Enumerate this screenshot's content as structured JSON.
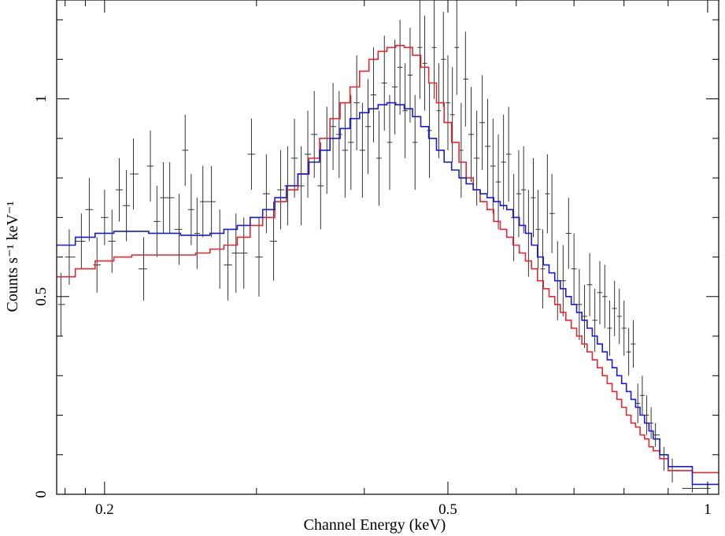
{
  "chart_data": {
    "type": "line",
    "xlabel": "Channel Energy (keV)",
    "ylabel": "Counts s⁻¹ keV⁻¹",
    "xscale": "log",
    "xlim": [
      0.176,
      1.03
    ],
    "ylim": [
      0,
      1.25
    ],
    "xticks": [
      {
        "value": 0.2,
        "label": "0.2"
      },
      {
        "value": 0.5,
        "label": "0.5"
      },
      {
        "value": 1,
        "label": "1"
      }
    ],
    "yticks": [
      {
        "value": 0,
        "label": "0"
      },
      {
        "value": 0.5,
        "label": "0.5"
      },
      {
        "value": 1,
        "label": "1"
      }
    ],
    "grid": false,
    "colors": {
      "data": "#333333",
      "model_red": "#e8262e",
      "model_blue": "#1a1adc"
    },
    "data_points": [
      [
        0.178,
        0.48,
        0.08
      ],
      [
        0.182,
        0.6,
        0.07
      ],
      [
        0.188,
        0.64,
        0.07
      ],
      [
        0.192,
        0.72,
        0.08
      ],
      [
        0.196,
        0.58,
        0.07
      ],
      [
        0.2,
        0.7,
        0.07
      ],
      [
        0.204,
        0.64,
        0.08
      ],
      [
        0.208,
        0.77,
        0.08
      ],
      [
        0.212,
        0.73,
        0.09
      ],
      [
        0.216,
        0.81,
        0.09
      ],
      [
        0.222,
        0.57,
        0.08
      ],
      [
        0.226,
        0.83,
        0.09
      ],
      [
        0.23,
        0.69,
        0.09
      ],
      [
        0.234,
        0.75,
        0.09
      ],
      [
        0.238,
        0.75,
        0.09
      ],
      [
        0.244,
        0.67,
        0.09
      ],
      [
        0.248,
        0.87,
        0.09
      ],
      [
        0.252,
        0.72,
        0.09
      ],
      [
        0.256,
        0.66,
        0.09
      ],
      [
        0.26,
        0.74,
        0.09
      ],
      [
        0.266,
        0.74,
        0.09
      ],
      [
        0.272,
        0.62,
        0.1
      ],
      [
        0.278,
        0.58,
        0.09
      ],
      [
        0.284,
        0.61,
        0.1
      ],
      [
        0.29,
        0.61,
        0.09
      ],
      [
        0.296,
        0.86,
        0.09
      ],
      [
        0.302,
        0.6,
        0.1
      ],
      [
        0.308,
        0.76,
        0.1
      ],
      [
        0.314,
        0.64,
        0.1
      ],
      [
        0.32,
        0.77,
        0.1
      ],
      [
        0.326,
        0.78,
        0.1
      ],
      [
        0.332,
        0.85,
        0.1
      ],
      [
        0.338,
        0.78,
        0.1
      ],
      [
        0.344,
        0.86,
        0.11
      ],
      [
        0.35,
        0.91,
        0.11
      ],
      [
        0.356,
        0.78,
        0.11
      ],
      [
        0.362,
        0.87,
        0.11
      ],
      [
        0.368,
        0.93,
        0.11
      ],
      [
        0.374,
        0.91,
        0.11
      ],
      [
        0.38,
        0.87,
        0.12
      ],
      [
        0.386,
        0.89,
        0.12
      ],
      [
        0.392,
        0.99,
        0.12
      ],
      [
        0.398,
        0.87,
        0.12
      ],
      [
        0.404,
        0.93,
        0.12
      ],
      [
        0.41,
        1.01,
        0.12
      ],
      [
        0.416,
        0.85,
        0.12
      ],
      [
        0.422,
        1.04,
        0.12
      ],
      [
        0.428,
        0.89,
        0.12
      ],
      [
        0.434,
        1.03,
        0.12
      ],
      [
        0.44,
        1.08,
        0.12
      ],
      [
        0.446,
        0.97,
        0.12
      ],
      [
        0.452,
        1.06,
        0.12
      ],
      [
        0.458,
        0.89,
        0.12
      ],
      [
        0.464,
        1.13,
        0.13
      ],
      [
        0.47,
        1.09,
        0.12
      ],
      [
        0.476,
        0.92,
        0.12
      ],
      [
        0.482,
        1.13,
        0.13
      ],
      [
        0.488,
        0.97,
        0.12
      ],
      [
        0.494,
        1.1,
        0.12
      ],
      [
        0.5,
        0.99,
        0.12
      ],
      [
        0.506,
        0.96,
        0.12
      ],
      [
        0.512,
        1.13,
        0.12
      ],
      [
        0.518,
        0.87,
        0.12
      ],
      [
        0.524,
        1.05,
        0.12
      ],
      [
        0.532,
        0.91,
        0.12
      ],
      [
        0.54,
        0.85,
        0.12
      ],
      [
        0.548,
        0.94,
        0.12
      ],
      [
        0.556,
        0.88,
        0.12
      ],
      [
        0.564,
        0.83,
        0.12
      ],
      [
        0.572,
        0.79,
        0.12
      ],
      [
        0.58,
        0.84,
        0.12
      ],
      [
        0.588,
        0.86,
        0.12
      ],
      [
        0.596,
        0.7,
        0.11
      ],
      [
        0.604,
        0.76,
        0.11
      ],
      [
        0.612,
        0.77,
        0.11
      ],
      [
        0.62,
        0.66,
        0.11
      ],
      [
        0.628,
        0.75,
        0.1
      ],
      [
        0.636,
        0.67,
        0.1
      ],
      [
        0.644,
        0.57,
        0.1
      ],
      [
        0.652,
        0.76,
        0.1
      ],
      [
        0.66,
        0.71,
        0.1
      ],
      [
        0.67,
        0.54,
        0.1
      ],
      [
        0.68,
        0.54,
        0.09
      ],
      [
        0.69,
        0.66,
        0.09
      ],
      [
        0.7,
        0.57,
        0.09
      ],
      [
        0.71,
        0.48,
        0.09
      ],
      [
        0.72,
        0.45,
        0.08
      ],
      [
        0.73,
        0.53,
        0.08
      ],
      [
        0.74,
        0.44,
        0.08
      ],
      [
        0.75,
        0.51,
        0.08
      ],
      [
        0.76,
        0.5,
        0.08
      ],
      [
        0.77,
        0.42,
        0.07
      ],
      [
        0.78,
        0.47,
        0.07
      ],
      [
        0.79,
        0.45,
        0.07
      ],
      [
        0.8,
        0.42,
        0.07
      ],
      [
        0.81,
        0.36,
        0.06
      ],
      [
        0.82,
        0.38,
        0.06
      ],
      [
        0.83,
        0.23,
        0.05
      ],
      [
        0.84,
        0.25,
        0.05
      ],
      [
        0.85,
        0.2,
        0.05
      ],
      [
        0.86,
        0.18,
        0.04
      ],
      [
        0.87,
        0.15,
        0.03
      ],
      [
        0.89,
        0.09,
        0.03
      ],
      [
        0.91,
        0.06,
        0.03
      ],
      [
        0.96,
        0.015,
        0.01
      ],
      [
        1.0,
        0.015,
        0.01
      ]
    ],
    "series": [
      {
        "color": "red",
        "points": [
          [
            0.176,
            0.55
          ],
          [
            0.185,
            0.57
          ],
          [
            0.195,
            0.59
          ],
          [
            0.205,
            0.6
          ],
          [
            0.215,
            0.605
          ],
          [
            0.225,
            0.605
          ],
          [
            0.235,
            0.605
          ],
          [
            0.245,
            0.605
          ],
          [
            0.255,
            0.61
          ],
          [
            0.265,
            0.62
          ],
          [
            0.275,
            0.63
          ],
          [
            0.285,
            0.65
          ],
          [
            0.295,
            0.68
          ],
          [
            0.305,
            0.7
          ],
          [
            0.315,
            0.74
          ],
          [
            0.325,
            0.77
          ],
          [
            0.335,
            0.81
          ],
          [
            0.345,
            0.85
          ],
          [
            0.355,
            0.9
          ],
          [
            0.365,
            0.95
          ],
          [
            0.375,
            0.99
          ],
          [
            0.385,
            1.03
          ],
          [
            0.395,
            1.07
          ],
          [
            0.405,
            1.1
          ],
          [
            0.415,
            1.12
          ],
          [
            0.425,
            1.13
          ],
          [
            0.435,
            1.135
          ],
          [
            0.445,
            1.13
          ],
          [
            0.455,
            1.11
          ],
          [
            0.465,
            1.08
          ],
          [
            0.475,
            1.04
          ],
          [
            0.485,
            0.99
          ],
          [
            0.495,
            0.94
          ],
          [
            0.505,
            0.89
          ],
          [
            0.515,
            0.84
          ],
          [
            0.525,
            0.8
          ],
          [
            0.535,
            0.77
          ],
          [
            0.545,
            0.74
          ],
          [
            0.555,
            0.72
          ],
          [
            0.565,
            0.69
          ],
          [
            0.575,
            0.67
          ],
          [
            0.585,
            0.65
          ],
          [
            0.595,
            0.63
          ],
          [
            0.605,
            0.61
          ],
          [
            0.615,
            0.59
          ],
          [
            0.625,
            0.57
          ],
          [
            0.635,
            0.54
          ],
          [
            0.645,
            0.52
          ],
          [
            0.655,
            0.5
          ],
          [
            0.665,
            0.48
          ],
          [
            0.675,
            0.46
          ],
          [
            0.685,
            0.44
          ],
          [
            0.695,
            0.42
          ],
          [
            0.705,
            0.4
          ],
          [
            0.715,
            0.38
          ],
          [
            0.725,
            0.36
          ],
          [
            0.735,
            0.34
          ],
          [
            0.745,
            0.32
          ],
          [
            0.755,
            0.3
          ],
          [
            0.765,
            0.28
          ],
          [
            0.775,
            0.26
          ],
          [
            0.785,
            0.24
          ],
          [
            0.795,
            0.22
          ],
          [
            0.805,
            0.2
          ],
          [
            0.815,
            0.18
          ],
          [
            0.825,
            0.17
          ],
          [
            0.835,
            0.15
          ],
          [
            0.845,
            0.14
          ],
          [
            0.855,
            0.12
          ],
          [
            0.865,
            0.11
          ],
          [
            0.88,
            0.09
          ],
          [
            0.9,
            0.06
          ],
          [
            0.96,
            0.055
          ],
          [
            1.03,
            0.055
          ]
        ]
      },
      {
        "color": "blue",
        "points": [
          [
            0.176,
            0.63
          ],
          [
            0.185,
            0.65
          ],
          [
            0.195,
            0.66
          ],
          [
            0.205,
            0.665
          ],
          [
            0.215,
            0.665
          ],
          [
            0.225,
            0.66
          ],
          [
            0.235,
            0.66
          ],
          [
            0.245,
            0.655
          ],
          [
            0.255,
            0.655
          ],
          [
            0.265,
            0.66
          ],
          [
            0.275,
            0.67
          ],
          [
            0.285,
            0.68
          ],
          [
            0.295,
            0.7
          ],
          [
            0.305,
            0.72
          ],
          [
            0.315,
            0.75
          ],
          [
            0.325,
            0.78
          ],
          [
            0.335,
            0.81
          ],
          [
            0.345,
            0.84
          ],
          [
            0.355,
            0.87
          ],
          [
            0.365,
            0.9
          ],
          [
            0.375,
            0.925
          ],
          [
            0.385,
            0.95
          ],
          [
            0.395,
            0.965
          ],
          [
            0.405,
            0.975
          ],
          [
            0.415,
            0.985
          ],
          [
            0.425,
            0.99
          ],
          [
            0.435,
            0.985
          ],
          [
            0.445,
            0.975
          ],
          [
            0.455,
            0.955
          ],
          [
            0.465,
            0.93
          ],
          [
            0.475,
            0.9
          ],
          [
            0.485,
            0.87
          ],
          [
            0.495,
            0.84
          ],
          [
            0.505,
            0.82
          ],
          [
            0.515,
            0.8
          ],
          [
            0.525,
            0.785
          ],
          [
            0.535,
            0.77
          ],
          [
            0.545,
            0.76
          ],
          [
            0.555,
            0.75
          ],
          [
            0.565,
            0.74
          ],
          [
            0.575,
            0.73
          ],
          [
            0.585,
            0.72
          ],
          [
            0.595,
            0.7
          ],
          [
            0.605,
            0.68
          ],
          [
            0.615,
            0.66
          ],
          [
            0.625,
            0.63
          ],
          [
            0.635,
            0.6
          ],
          [
            0.645,
            0.58
          ],
          [
            0.655,
            0.56
          ],
          [
            0.665,
            0.54
          ],
          [
            0.675,
            0.52
          ],
          [
            0.685,
            0.5
          ],
          [
            0.695,
            0.48
          ],
          [
            0.705,
            0.46
          ],
          [
            0.715,
            0.44
          ],
          [
            0.725,
            0.42
          ],
          [
            0.735,
            0.4
          ],
          [
            0.745,
            0.38
          ],
          [
            0.755,
            0.36
          ],
          [
            0.765,
            0.34
          ],
          [
            0.775,
            0.32
          ],
          [
            0.785,
            0.3
          ],
          [
            0.795,
            0.28
          ],
          [
            0.805,
            0.26
          ],
          [
            0.815,
            0.24
          ],
          [
            0.825,
            0.22
          ],
          [
            0.835,
            0.2
          ],
          [
            0.845,
            0.18
          ],
          [
            0.855,
            0.16
          ],
          [
            0.865,
            0.14
          ],
          [
            0.88,
            0.1
          ],
          [
            0.9,
            0.07
          ],
          [
            0.96,
            0.025
          ],
          [
            1.03,
            0.025
          ]
        ]
      }
    ]
  }
}
